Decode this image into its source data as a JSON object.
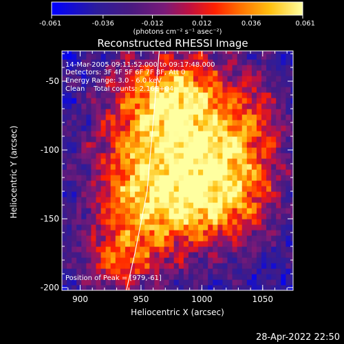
{
  "chart_data": {
    "type": "heatmap",
    "title": "Reconstructed RHESSI Image",
    "xlabel": "Heliocentric X (arcsec)",
    "ylabel": "Heliocentric Y (arcsec)",
    "xlim": [
      885,
      1075
    ],
    "ylim": [
      -202,
      -28
    ],
    "x_ticks": [
      900,
      950,
      1000,
      1050
    ],
    "y_ticks": [
      -50,
      -100,
      -150,
      -200
    ],
    "x_tick_labels": [
      "900",
      "950",
      "1000",
      "1050"
    ],
    "y_tick_labels": [
      "-50",
      "-100",
      "-150",
      "-200"
    ],
    "colorbar": {
      "range": [
        -0.061,
        0.061
      ],
      "ticks": [
        -0.061,
        -0.036,
        -0.012,
        0.012,
        0.036,
        0.061
      ],
      "tick_labels": [
        "-0.061",
        "-0.036",
        "-0.012",
        "0.012",
        "0.036",
        "0.061"
      ],
      "units_label": "(photons cm⁻² s⁻¹ asec⁻²)"
    },
    "annotations": {
      "time": "14-Mar-2005 09:11:52.000 to 09:17:48.000",
      "detectors": "Detectors: 3F 4F 5F 6F 7F 8F, Att 0",
      "energy": "Energy Range: 3.0 - 6.0 keV",
      "clean": "Clean    Total counts: 2.16E+04",
      "peak": "Position of Peak = [979,-61]"
    },
    "peak_position": [
      979,
      -61
    ],
    "limb": [
      [
        965,
        -28
      ],
      [
        960,
        -80
      ],
      [
        955,
        -130
      ],
      [
        945,
        -175
      ],
      [
        938,
        -202
      ]
    ],
    "sources": [
      {
        "x": 990,
        "y": -95,
        "sx": 38,
        "sy": 45,
        "amp": 0.075
      },
      {
        "x": 975,
        "y": -62,
        "sx": 22,
        "sy": 20,
        "amp": 0.04
      },
      {
        "x": 1025,
        "y": -120,
        "sx": 28,
        "sy": 30,
        "amp": 0.04
      },
      {
        "x": 945,
        "y": -150,
        "sx": 30,
        "sy": 30,
        "amp": 0.045
      },
      {
        "x": 940,
        "y": -105,
        "sx": 25,
        "sy": 25,
        "amp": 0.03
      },
      {
        "x": 1000,
        "y": -145,
        "sx": 35,
        "sy": 18,
        "amp": 0.03
      },
      {
        "x": 935,
        "y": -60,
        "sx": 20,
        "sy": 20,
        "amp": 0.022
      },
      {
        "x": 1045,
        "y": -75,
        "sx": 15,
        "sy": 20,
        "amp": 0.02
      },
      {
        "x": 930,
        "y": -185,
        "sx": 22,
        "sy": 15,
        "amp": 0.04
      }
    ],
    "background_level": -0.038
  },
  "footer": {
    "date": "28-Apr-2022 22:50"
  }
}
